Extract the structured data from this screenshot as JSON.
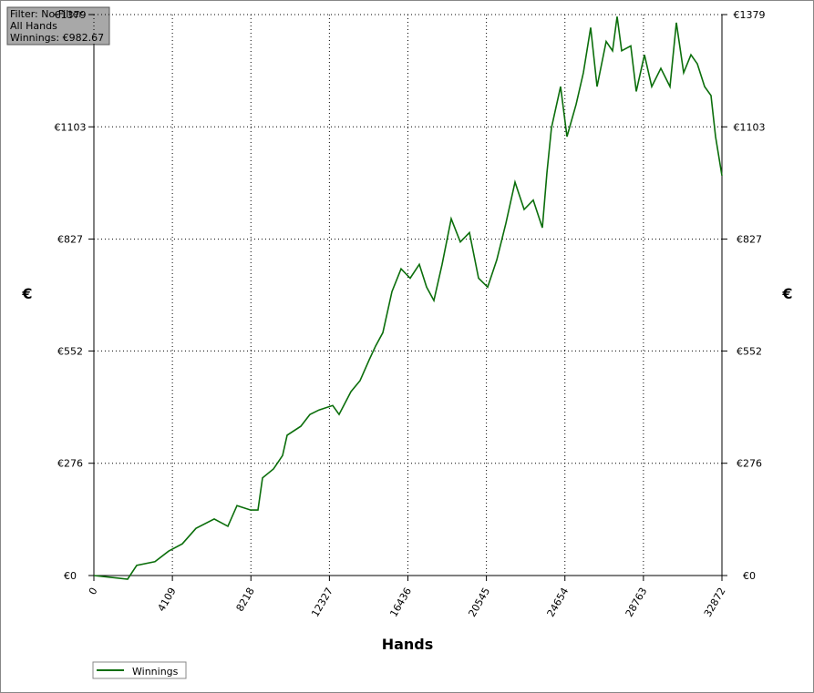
{
  "chart_data": {
    "type": "line",
    "info": [
      "Filter: No Filter",
      "All Hands",
      "Winnings: €982.67"
    ],
    "x_label": "Hands",
    "y_label": "€",
    "y2_label": "€",
    "x": [
      0,
      811,
      1765,
      2242,
      3197,
      3912,
      4628,
      5344,
      6298,
      7013,
      7490,
      8206,
      8588,
      8826,
      9399,
      9876,
      10115,
      10830,
      11307,
      11784,
      12500,
      12834,
      13454,
      13931,
      14408,
      14742,
      15124,
      15601,
      16078,
      16555,
      17032,
      17414,
      17796,
      18225,
      18702,
      19179,
      19656,
      20134,
      20611,
      21088,
      21565,
      22042,
      22519,
      22996,
      23473,
      23712,
      23950,
      24427,
      24761,
      25238,
      25620,
      26002,
      26336,
      26813,
      27147,
      27386,
      27624,
      28101,
      28387,
      28817,
      29198,
      29676,
      30153,
      30487,
      30868,
      31250,
      31584,
      31966,
      32300,
      32538,
      32872
    ],
    "series": [
      {
        "name": "Winnings",
        "color": "#0b6e0b",
        "values": [
          0,
          -4,
          -9,
          25,
          34,
          60,
          78,
          116,
          139,
          121,
          172,
          161,
          161,
          240,
          262,
          295,
          345,
          367,
          396,
          407,
          418,
          396,
          452,
          479,
          530,
          564,
          597,
          698,
          754,
          731,
          765,
          709,
          676,
          765,
          877,
          820,
          843,
          731,
          709,
          776,
          866,
          967,
          900,
          923,
          855,
          990,
          1101,
          1202,
          1079,
          1158,
          1236,
          1347,
          1202,
          1313,
          1290,
          1374,
          1290,
          1302,
          1190,
          1280,
          1202,
          1247,
          1202,
          1359,
          1236,
          1280,
          1258,
          1202,
          1180,
          1079,
          983
        ]
      }
    ],
    "xlim": [
      0,
      32872
    ],
    "xticks": [
      0,
      4109,
      8218,
      12327,
      16436,
      20545,
      24654,
      28763,
      32872
    ],
    "ylim": [
      0,
      1379
    ],
    "yticks": [
      {
        "value": 0,
        "label": "€0"
      },
      {
        "value": 276,
        "label": "€276"
      },
      {
        "value": 552,
        "label": "€552"
      },
      {
        "value": 827,
        "label": "€827"
      },
      {
        "value": 1103,
        "label": "€1103"
      },
      {
        "value": 1379,
        "label": "€1379"
      }
    ],
    "grid": true
  }
}
